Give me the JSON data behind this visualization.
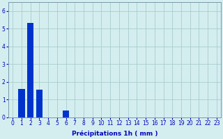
{
  "categories": [
    0,
    1,
    2,
    3,
    4,
    5,
    6,
    7,
    8,
    9,
    10,
    11,
    12,
    13,
    14,
    15,
    16,
    17,
    18,
    19,
    20,
    21,
    22,
    23
  ],
  "values": [
    0,
    1.6,
    5.3,
    1.55,
    0,
    0,
    0.38,
    0,
    0,
    0,
    0,
    0,
    0,
    0,
    0,
    0,
    0,
    0,
    0,
    0,
    0,
    0,
    0,
    0
  ],
  "bar_color": "#0033cc",
  "background_color": "#d4eef0",
  "grid_color": "#aacccc",
  "xlabel": "Précipitations 1h ( mm )",
  "ylim": [
    0,
    6.5
  ],
  "yticks": [
    0,
    1,
    2,
    3,
    4,
    5,
    6
  ],
  "bar_width": 0.75,
  "xlabel_fontsize": 6.5,
  "tick_fontsize": 5.5,
  "tick_color": "#0000bb",
  "axis_color": "#7799aa",
  "xlim_left": -0.5,
  "xlim_right": 23.5
}
